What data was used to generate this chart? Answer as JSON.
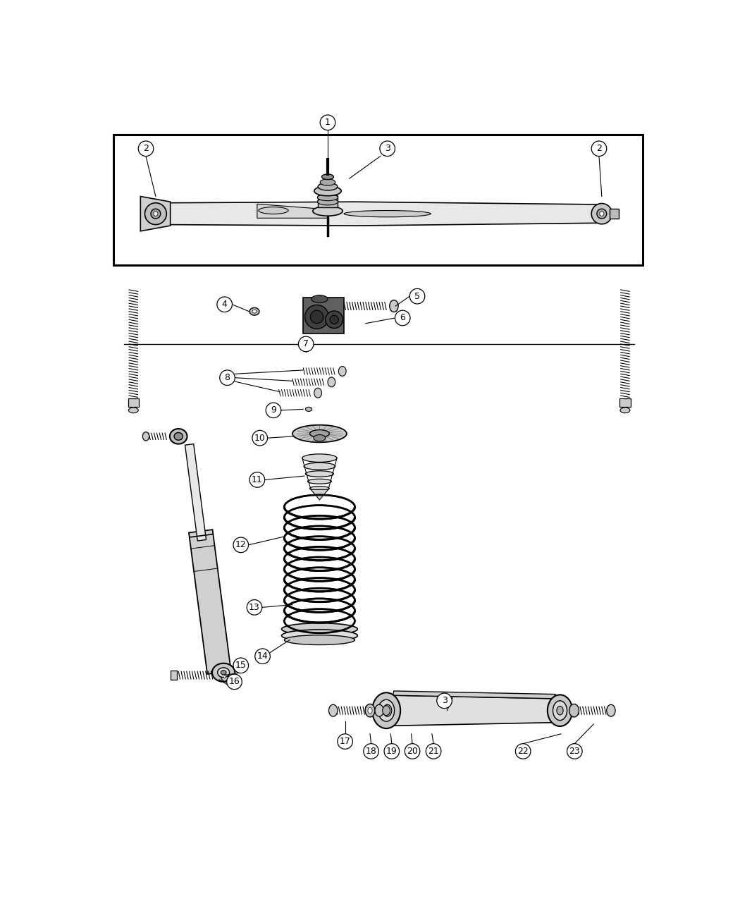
{
  "bg_color": "#ffffff",
  "line_color": "#000000",
  "fig_width": 10.5,
  "fig_height": 12.75,
  "dpi": 100
}
